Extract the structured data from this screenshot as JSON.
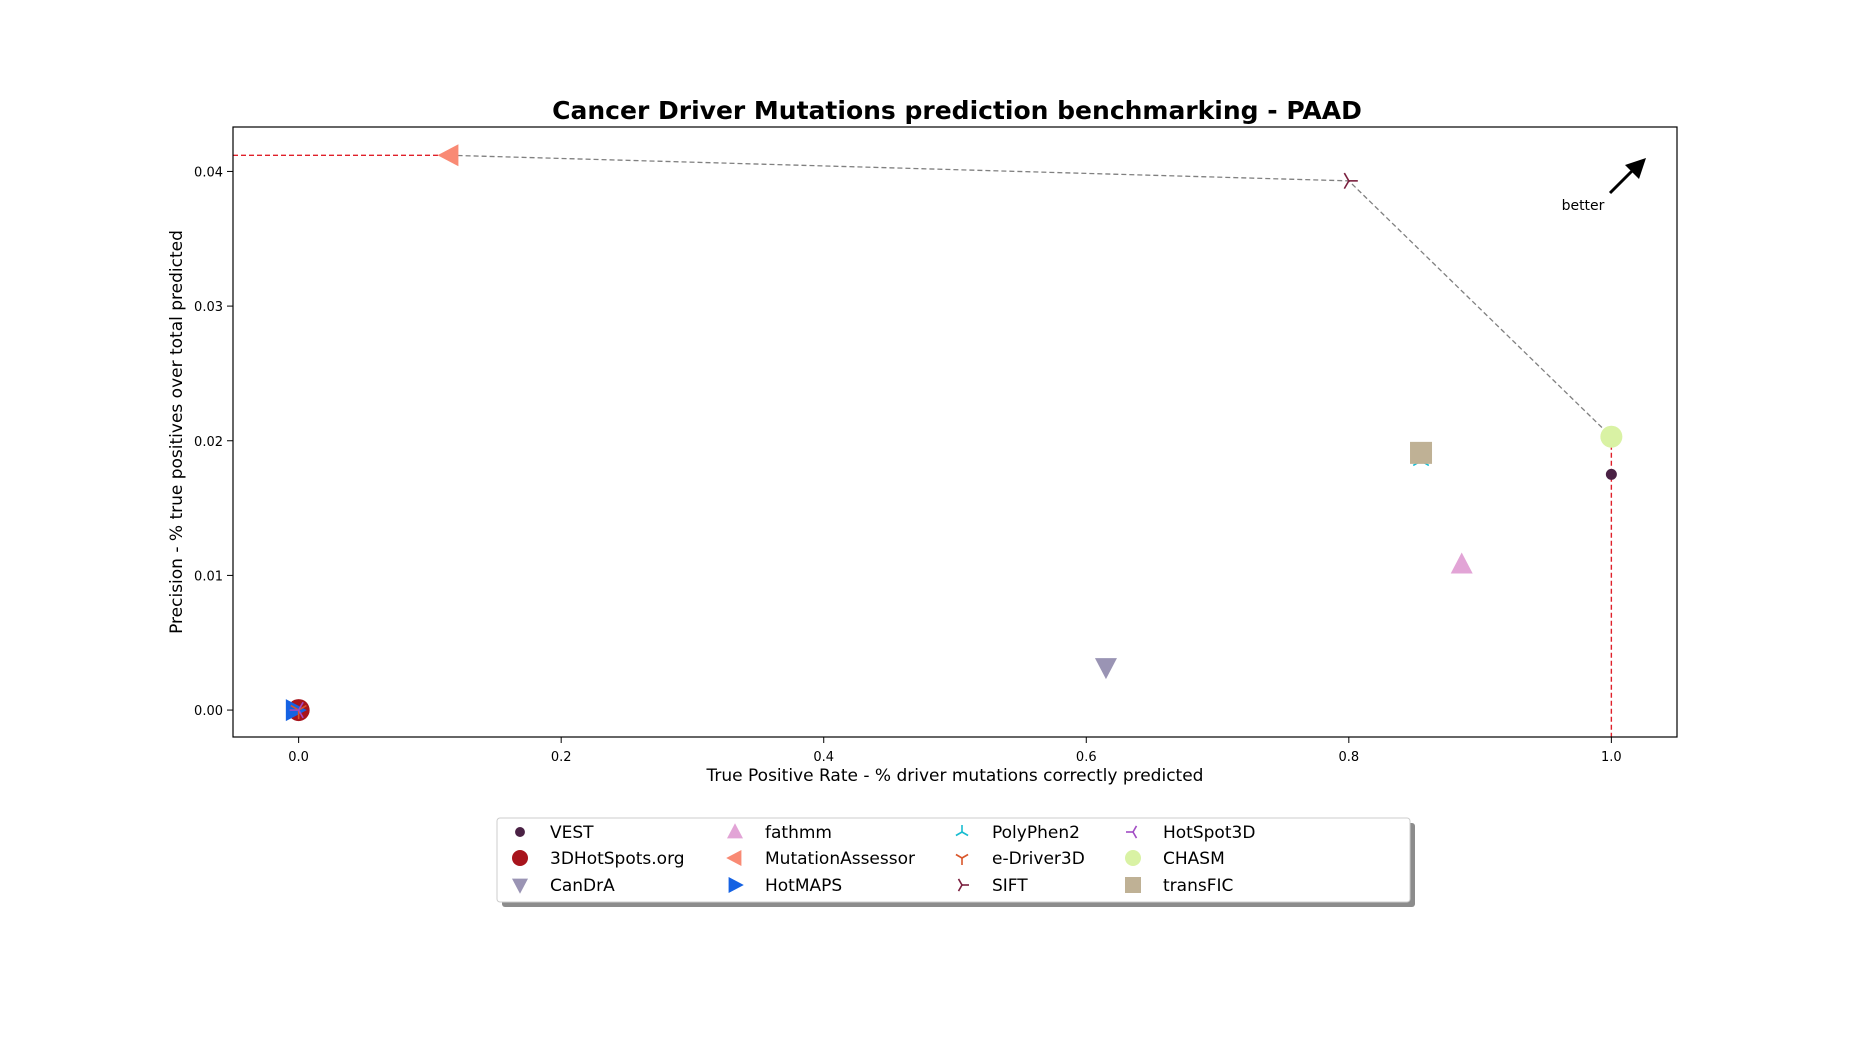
{
  "chart_data": {
    "type": "scatter",
    "title": "Cancer Driver Mutations prediction benchmarking - PAAD",
    "xlabel": "True Positive Rate - % driver mutations correctly predicted",
    "ylabel": "Precision - % true positives over total predicted",
    "xlim": [
      -0.05,
      1.05
    ],
    "ylim": [
      -0.002,
      0.0433
    ],
    "xticks": [
      "0.0",
      "0.2",
      "0.4",
      "0.6",
      "0.8",
      "1.0"
    ],
    "xtick_values": [
      0.0,
      0.2,
      0.4,
      0.6,
      0.8,
      1.0
    ],
    "yticks": [
      "0.00",
      "0.01",
      "0.02",
      "0.03",
      "0.04"
    ],
    "ytick_values": [
      0.0,
      0.01,
      0.02,
      0.03,
      0.04
    ],
    "grid": false,
    "legend_placement": "bottom-center",
    "annotation": "better",
    "series": [
      {
        "name": "VEST",
        "x": 1.0,
        "y": 0.0175,
        "marker": "circle-small",
        "color": "#4a2144"
      },
      {
        "name": "3DHotSpots.org",
        "x": 0.0,
        "y": 0.0,
        "marker": "circle",
        "color": "#a8141c"
      },
      {
        "name": "CanDrA",
        "x": 0.615,
        "y": 0.0032,
        "marker": "triangle-down",
        "color": "#9a94b4"
      },
      {
        "name": "fathmm",
        "x": 0.886,
        "y": 0.0108,
        "marker": "triangle-up",
        "color": "#e2a4d6"
      },
      {
        "name": "MutationAssessor",
        "x": 0.115,
        "y": 0.0412,
        "marker": "triangle-left",
        "color": "#f98a74"
      },
      {
        "name": "HotMAPS",
        "x": 0.0,
        "y": 0.0,
        "marker": "triangle-right",
        "color": "#1562e3"
      },
      {
        "name": "PolyPhen2",
        "x": 0.855,
        "y": 0.0185,
        "marker": "tri-down",
        "color": "#17bcd0"
      },
      {
        "name": "e-Driver3D",
        "x": 0.0,
        "y": 0.0,
        "marker": "tri-up",
        "color": "#d9562a"
      },
      {
        "name": "SIFT",
        "x": 0.8,
        "y": 0.0393,
        "marker": "tri-left",
        "color": "#7a1f3e"
      },
      {
        "name": "HotSpot3D",
        "x": 0.0,
        "y": 0.0,
        "marker": "tri-right",
        "color": "#a24cc4"
      },
      {
        "name": "CHASM",
        "x": 1.0,
        "y": 0.0203,
        "marker": "circle",
        "color": "#d9f2a4"
      },
      {
        "name": "transFIC",
        "x": 0.855,
        "y": 0.0191,
        "marker": "square",
        "color": "#bfb195"
      }
    ],
    "pareto_front": {
      "x": [
        0.115,
        0.8,
        1.0
      ],
      "y": [
        0.0412,
        0.0393,
        0.0203
      ],
      "color": "#808080"
    },
    "reference_lines": {
      "color": "#e0202a",
      "h_y": 0.0412,
      "v_x": 1.0
    }
  }
}
